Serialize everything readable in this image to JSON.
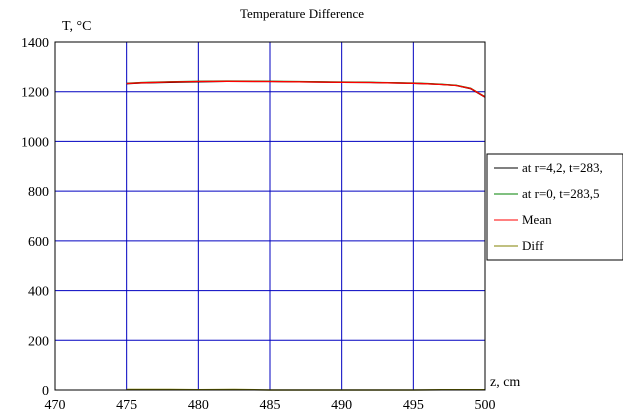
{
  "chart_data": {
    "type": "line",
    "title": "Temperature Difference",
    "ylabel": "T, °C",
    "xlabel": "z, cm",
    "xlim": [
      470,
      500
    ],
    "ylim": [
      0,
      1400
    ],
    "x_ticks": [
      "470",
      "475",
      "480",
      "485",
      "490",
      "495",
      "500"
    ],
    "y_ticks": [
      "0",
      "200",
      "400",
      "600",
      "800",
      "1000",
      "1200",
      "1400"
    ],
    "grid": true,
    "legend_position": "right",
    "series": [
      {
        "name": "at r=4,2, t=283,",
        "color": "#000000",
        "x": [
          475,
          476,
          478,
          480,
          482,
          485,
          487,
          490,
          492,
          495,
          496,
          497,
          498,
          499,
          499.5,
          500
        ],
        "y": [
          1232,
          1235,
          1238,
          1240,
          1242,
          1241,
          1240,
          1238,
          1237,
          1234,
          1232,
          1229,
          1225,
          1212,
          1195,
          1178
        ]
      },
      {
        "name": "at r=0, t=283,5",
        "color": "#008000",
        "x": [
          475,
          476,
          478,
          480,
          482,
          485,
          487,
          490,
          492,
          495,
          496,
          497,
          498,
          499,
          499.5,
          500
        ],
        "y": [
          1234,
          1237,
          1240,
          1242,
          1243,
          1242,
          1241,
          1239,
          1238,
          1235,
          1233,
          1230,
          1226,
          1214,
          1197,
          1180
        ]
      },
      {
        "name": "Mean",
        "color": "#ff0000",
        "x": [
          475,
          476,
          478,
          480,
          482,
          485,
          487,
          490,
          492,
          495,
          496,
          497,
          498,
          499,
          499.5,
          500
        ],
        "y": [
          1233,
          1236,
          1239,
          1241,
          1242,
          1241,
          1240,
          1238,
          1237,
          1234,
          1232,
          1229,
          1225,
          1213,
          1196,
          1179
        ]
      },
      {
        "name": "Diff",
        "color": "#808000",
        "x": [
          475,
          478,
          480,
          482.5,
          485,
          490,
          495,
          497,
          500
        ],
        "y": [
          2,
          2,
          1,
          2,
          0,
          0,
          0,
          1,
          1
        ]
      }
    ]
  }
}
